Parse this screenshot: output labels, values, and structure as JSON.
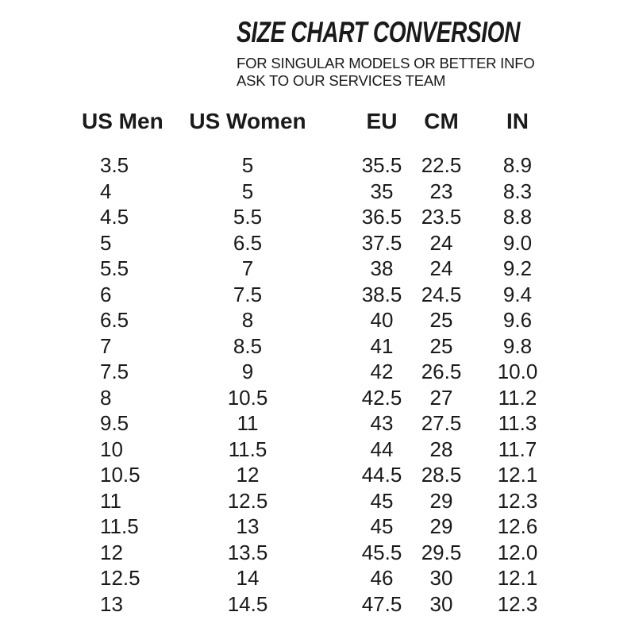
{
  "header": {
    "title": "SIZE CHART CONVERSION",
    "subtitle_line1": "FOR SINGULAR MODELS OR BETTER INFO",
    "subtitle_line2": "ASK TO OUR SERVICES TEAM"
  },
  "table": {
    "columns": [
      {
        "id": "us-men",
        "label": "US Men"
      },
      {
        "id": "us-women",
        "label": "US Women"
      },
      {
        "id": "eu",
        "label": "EU"
      },
      {
        "id": "cm",
        "label": "CM"
      },
      {
        "id": "in",
        "label": "IN"
      }
    ],
    "rows": [
      [
        "3.5",
        "5",
        "35.5",
        "22.5",
        "8.9"
      ],
      [
        "4",
        "5",
        "35",
        "23",
        "8.3"
      ],
      [
        "4.5",
        "5.5",
        "36.5",
        "23.5",
        "8.8"
      ],
      [
        "5",
        "6.5",
        "37.5",
        "24",
        "9.0"
      ],
      [
        "5.5",
        "7",
        "38",
        "24",
        "9.2"
      ],
      [
        "6",
        "7.5",
        "38.5",
        "24.5",
        "9.4"
      ],
      [
        "6.5",
        "8",
        "40",
        "25",
        "9.6"
      ],
      [
        "7",
        "8.5",
        "41",
        "25",
        "9.8"
      ],
      [
        "7.5",
        "9",
        "42",
        "26.5",
        "10.0"
      ],
      [
        "8",
        "10.5",
        "42.5",
        "27",
        "11.2"
      ],
      [
        "9.5",
        "11",
        "43",
        "27.5",
        "11.3"
      ],
      [
        "10",
        "11.5",
        "44",
        "28",
        "11.7"
      ],
      [
        "10.5",
        "12",
        "44.5",
        "28.5",
        "12.1"
      ],
      [
        "11",
        "12.5",
        "45",
        "29",
        "12.3"
      ],
      [
        "11.5",
        "13",
        "45",
        "29",
        "12.6"
      ],
      [
        "12",
        "13.5",
        "45.5",
        "29.5",
        "12.0"
      ],
      [
        "12.5",
        "14",
        "46",
        "30",
        "12.1"
      ],
      [
        "13",
        "14.5",
        "47.5",
        "30",
        "12.3"
      ]
    ]
  },
  "colors": {
    "text": "#1a1a1a",
    "background": "#ffffff"
  }
}
